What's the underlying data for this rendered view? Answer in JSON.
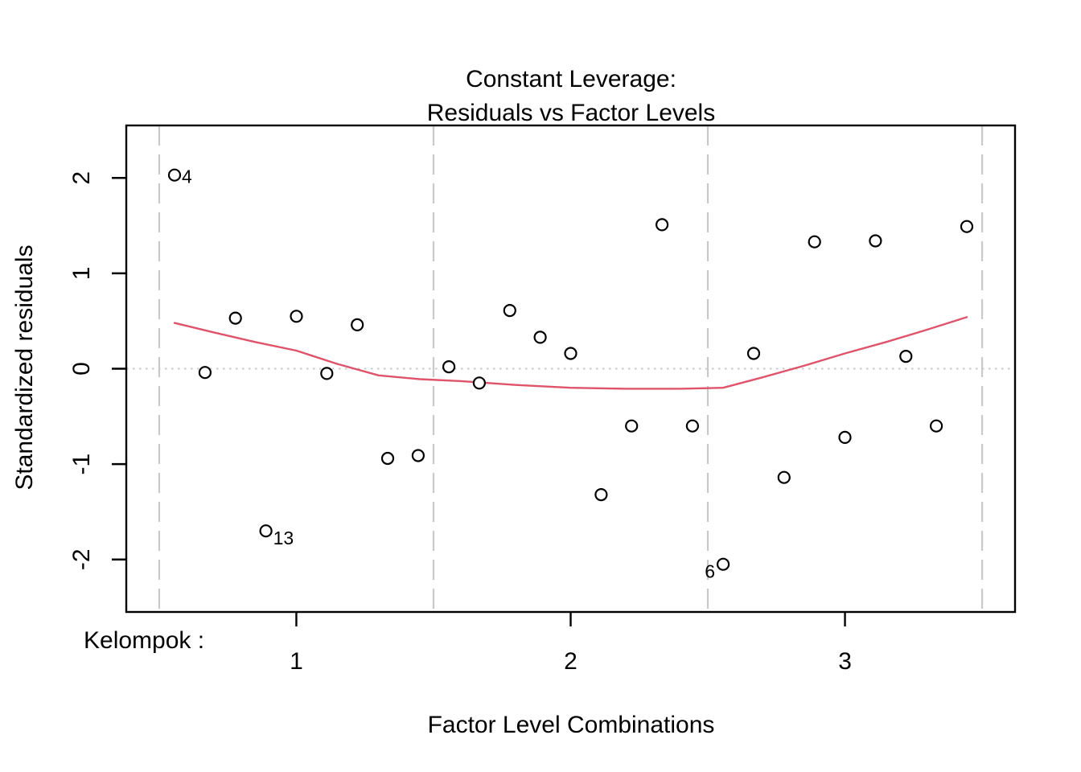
{
  "chart_data": {
    "type": "scatter",
    "title_lines": [
      "Constant Leverage:",
      "Residuals vs Factor Levels"
    ],
    "xlabel": "Factor Level Combinations",
    "ylabel": "Standardized residuals",
    "group_prefix_label": "Kelompok :",
    "x_ticks": [
      "1",
      "2",
      "3"
    ],
    "x_tick_values": [
      1,
      2,
      3
    ],
    "y_ticks": [
      "-2",
      "-1",
      "0",
      "1",
      "2"
    ],
    "y_tick_values": [
      -2,
      -1,
      0,
      1,
      2
    ],
    "xlim": [
      0.38,
      3.62
    ],
    "ylim": [
      -2.55,
      2.55
    ],
    "grid": "none",
    "legend": "none",
    "group_separators_x": [
      0.5,
      1.5,
      2.5,
      3.5
    ],
    "zero_reference_y": 0,
    "points": [
      {
        "x": 0.556,
        "y": 2.03,
        "id": "4",
        "id_pos": "right"
      },
      {
        "x": 0.667,
        "y": -0.04
      },
      {
        "x": 0.778,
        "y": 0.53
      },
      {
        "x": 0.889,
        "y": -1.7,
        "id": "13",
        "id_pos": "right-below"
      },
      {
        "x": 1.0,
        "y": 0.55
      },
      {
        "x": 1.111,
        "y": -0.05
      },
      {
        "x": 1.222,
        "y": 0.46
      },
      {
        "x": 1.333,
        "y": -0.94
      },
      {
        "x": 1.444,
        "y": -0.91
      },
      {
        "x": 1.556,
        "y": 0.02
      },
      {
        "x": 1.667,
        "y": -0.15
      },
      {
        "x": 1.778,
        "y": 0.61
      },
      {
        "x": 1.889,
        "y": 0.33
      },
      {
        "x": 2.0,
        "y": 0.16
      },
      {
        "x": 2.111,
        "y": -1.32
      },
      {
        "x": 2.222,
        "y": -0.6
      },
      {
        "x": 2.333,
        "y": 1.51
      },
      {
        "x": 2.444,
        "y": -0.6
      },
      {
        "x": 2.556,
        "y": -2.05,
        "id": "6",
        "id_pos": "left-below"
      },
      {
        "x": 2.667,
        "y": 0.16
      },
      {
        "x": 2.778,
        "y": -1.14
      },
      {
        "x": 2.889,
        "y": 1.33
      },
      {
        "x": 3.0,
        "y": -0.72
      },
      {
        "x": 3.111,
        "y": 1.34
      },
      {
        "x": 3.222,
        "y": 0.13
      },
      {
        "x": 3.333,
        "y": -0.6
      },
      {
        "x": 3.444,
        "y": 1.49
      }
    ],
    "smooth_line": {
      "name": "red-smoother",
      "xy": [
        [
          0.556,
          0.48
        ],
        [
          0.7,
          0.38
        ],
        [
          0.85,
          0.28
        ],
        [
          1.0,
          0.19
        ],
        [
          1.15,
          0.05
        ],
        [
          1.3,
          -0.07
        ],
        [
          1.45,
          -0.11
        ],
        [
          1.6,
          -0.13
        ],
        [
          1.8,
          -0.17
        ],
        [
          2.0,
          -0.2
        ],
        [
          2.2,
          -0.21
        ],
        [
          2.4,
          -0.21
        ],
        [
          2.556,
          -0.2
        ],
        [
          2.7,
          -0.09
        ],
        [
          2.85,
          0.03
        ],
        [
          3.0,
          0.16
        ],
        [
          3.15,
          0.28
        ],
        [
          3.3,
          0.41
        ],
        [
          3.444,
          0.54
        ]
      ]
    },
    "colors": {
      "smooth_line": "#DF536B",
      "separator_line": "#C9C9C9",
      "zero_line": "#C9C9C9",
      "point_stroke": "#000000",
      "point_fill": "#ffffff",
      "axis": "#000000"
    }
  }
}
